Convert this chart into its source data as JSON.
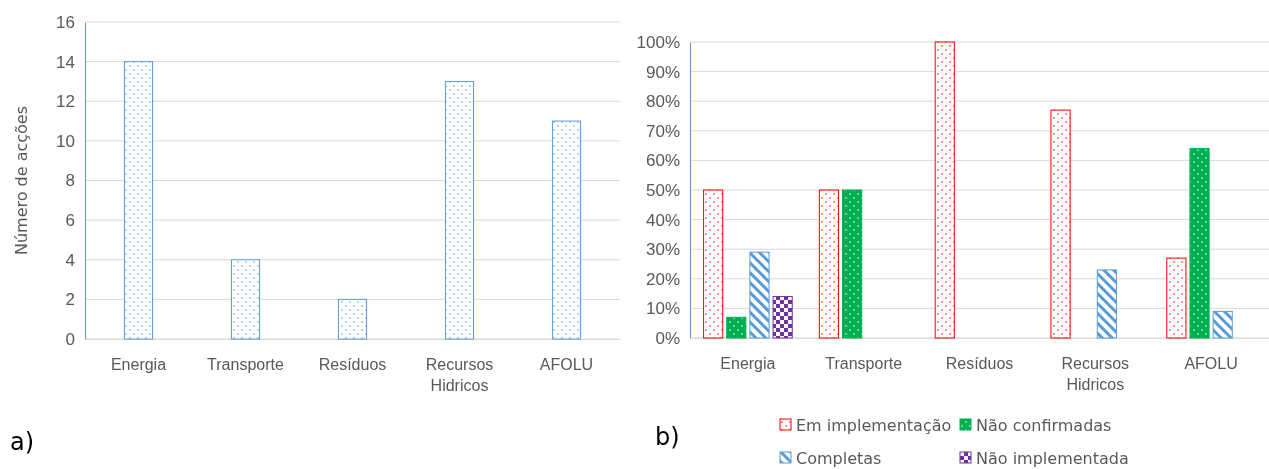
{
  "chart_data": [
    {
      "type": "bar",
      "ylabel": "Número de acções",
      "categories": [
        "Energia",
        "Transporte",
        "Resíduos",
        "Recursos\nHidricos",
        "AFOLU"
      ],
      "values": [
        14,
        4,
        2,
        13,
        11
      ],
      "color": "#5b9bd5",
      "ylim": [
        0,
        16
      ],
      "yticks": [
        0,
        2,
        4,
        6,
        8,
        10,
        12,
        14,
        16
      ],
      "grid": "y",
      "annotations": [
        "a)"
      ]
    },
    {
      "type": "bar",
      "categories": [
        "Energia",
        "Transporte",
        "Resíduos",
        "Recursos\nHidricos",
        "AFOLU"
      ],
      "series": [
        {
          "name": "Em implementação",
          "color": "#ff0000",
          "values": [
            50,
            50,
            100,
            77,
            27
          ]
        },
        {
          "name": "Não confirmadas",
          "color": "#00b050",
          "values": [
            7,
            50,
            null,
            null,
            64
          ]
        },
        {
          "name": "Completas",
          "color": "#5b9bd5",
          "values": [
            29,
            null,
            null,
            23,
            9
          ]
        },
        {
          "name": "Não implementada",
          "color": "#7030a0",
          "values": [
            14,
            null,
            null,
            null,
            null
          ]
        }
      ],
      "ylim": [
        0,
        100
      ],
      "yticks": [
        {
          "value": 0,
          "label": "0%"
        },
        {
          "value": 10,
          "label": "10%"
        },
        {
          "value": 20,
          "label": "20%"
        },
        {
          "value": 30,
          "label": "30%"
        },
        {
          "value": 40,
          "label": "40%"
        },
        {
          "value": 50,
          "label": "50%"
        },
        {
          "value": 60,
          "label": "60%"
        },
        {
          "value": 70,
          "label": "70%"
        },
        {
          "value": 80,
          "label": "80%"
        },
        {
          "value": 90,
          "label": "90%"
        },
        {
          "value": 100,
          "label": "100%"
        }
      ],
      "grid": "y",
      "legend": "bottom",
      "annotations": [
        "b)"
      ]
    }
  ]
}
